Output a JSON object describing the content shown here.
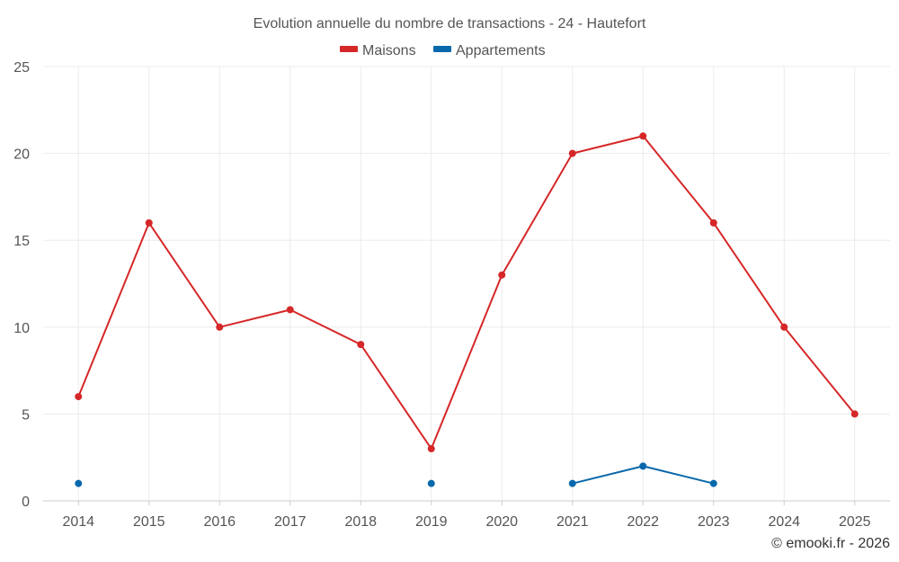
{
  "chart_data": {
    "type": "line",
    "title": "Evolution annuelle du nombre de transactions - 24 - Hautefort",
    "categories": [
      "2014",
      "2015",
      "2016",
      "2017",
      "2018",
      "2019",
      "2020",
      "2021",
      "2022",
      "2023",
      "2024",
      "2025"
    ],
    "ylim": [
      0,
      25
    ],
    "yticks": [
      0,
      5,
      10,
      15,
      20,
      25
    ],
    "grid": true,
    "legend_position": "top-center",
    "series": [
      {
        "name": "Maisons",
        "color": "#d62728",
        "values": [
          6,
          16,
          10,
          11,
          9,
          3,
          13,
          20,
          21,
          16,
          10,
          5
        ]
      },
      {
        "name": "Appartements",
        "color": "#0868ac",
        "values": [
          1,
          null,
          null,
          null,
          null,
          1,
          null,
          1,
          2,
          1,
          null,
          null
        ]
      }
    ]
  },
  "credit": "© emooki.fr - 2026"
}
